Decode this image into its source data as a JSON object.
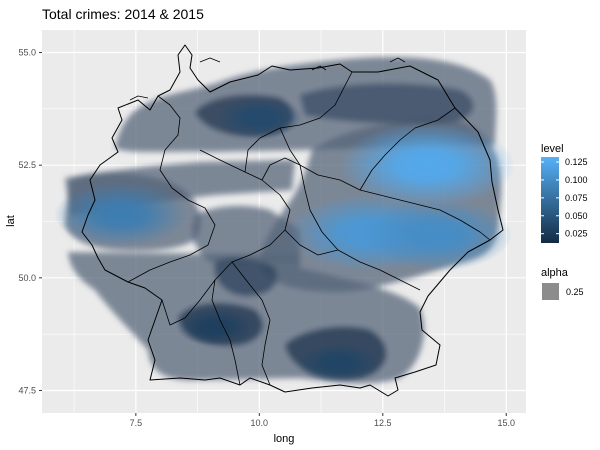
{
  "chart_data": {
    "type": "heatmap",
    "subtype": "2d-density-contour-map",
    "title": "Total crimes: 2014 & 2015",
    "xlabel": "long",
    "ylabel": "lat",
    "xlim": [
      5.6,
      15.4
    ],
    "ylim": [
      47.0,
      55.5
    ],
    "x_ticks": [
      7.5,
      10.0,
      12.5,
      15.0
    ],
    "x_tick_labels": [
      "7.5",
      "10.0",
      "12.5",
      "15.0"
    ],
    "y_ticks": [
      47.5,
      50.0,
      52.5,
      55.0
    ],
    "y_tick_labels": [
      "47.5",
      "50.0",
      "52.5",
      "55.0"
    ],
    "grid": true,
    "background": "#ebebeb",
    "outline": "Germany state boundaries",
    "hotspots": [
      {
        "long": 13.4,
        "lat": 52.5,
        "level": 0.125
      },
      {
        "long": 12.2,
        "lat": 51.0,
        "level": 0.11
      },
      {
        "long": 13.6,
        "lat": 50.95,
        "level": 0.1
      },
      {
        "long": 7.2,
        "lat": 51.4,
        "level": 0.085
      },
      {
        "long": 10.0,
        "lat": 53.55,
        "level": 0.04
      },
      {
        "long": 11.6,
        "lat": 48.1,
        "level": 0.035
      },
      {
        "long": 9.1,
        "lat": 48.9,
        "level": 0.03
      }
    ],
    "legend": {
      "placement": "right",
      "level": {
        "title": "level",
        "labels": [
          "0.125",
          "0.100",
          "0.075",
          "0.050",
          "0.025"
        ],
        "values": [
          0.125,
          0.1,
          0.075,
          0.05,
          0.025
        ],
        "range": [
          0.012,
          0.132
        ],
        "color_low": "#132b43",
        "color_high": "#56b1f7"
      },
      "alpha": {
        "title": "alpha",
        "label": "0.25",
        "swatch_color": "#8c8c8c"
      }
    }
  }
}
